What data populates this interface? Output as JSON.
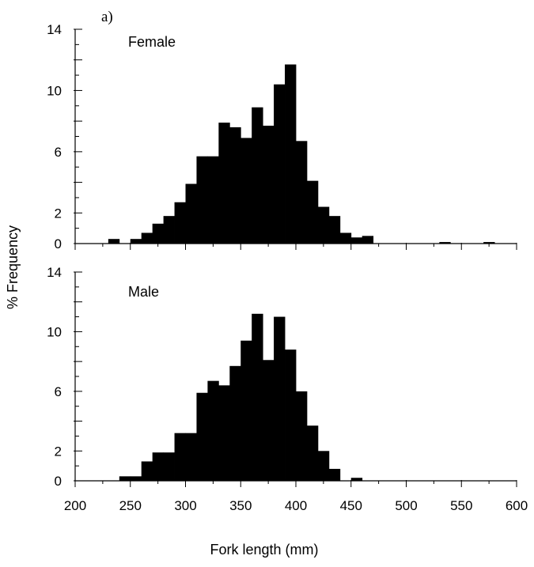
{
  "chart_data": {
    "type": "bar",
    "panel_letter": "a)",
    "xlabel": "Fork length (mm)",
    "ylabel": "% Frequency",
    "xlim": [
      200,
      600
    ],
    "x_ticks": [
      200,
      250,
      300,
      350,
      400,
      450,
      500,
      550,
      600
    ],
    "bin_width": 10,
    "panels": [
      {
        "title": "Female",
        "ylim": [
          0,
          14
        ],
        "y_ticks": [
          0,
          2,
          6,
          10,
          14
        ],
        "bins": [
          {
            "x": 200,
            "value": 0.0
          },
          {
            "x": 210,
            "value": 0.0
          },
          {
            "x": 220,
            "value": 0.0
          },
          {
            "x": 230,
            "value": 0.3
          },
          {
            "x": 240,
            "value": 0.0
          },
          {
            "x": 250,
            "value": 0.3
          },
          {
            "x": 260,
            "value": 0.7
          },
          {
            "x": 270,
            "value": 1.3
          },
          {
            "x": 280,
            "value": 1.8
          },
          {
            "x": 290,
            "value": 2.7
          },
          {
            "x": 300,
            "value": 3.9
          },
          {
            "x": 310,
            "value": 5.7
          },
          {
            "x": 320,
            "value": 5.7
          },
          {
            "x": 330,
            "value": 7.9
          },
          {
            "x": 340,
            "value": 7.6
          },
          {
            "x": 350,
            "value": 6.9
          },
          {
            "x": 360,
            "value": 8.9
          },
          {
            "x": 370,
            "value": 7.7
          },
          {
            "x": 380,
            "value": 10.4
          },
          {
            "x": 390,
            "value": 11.7
          },
          {
            "x": 400,
            "value": 6.7
          },
          {
            "x": 410,
            "value": 4.1
          },
          {
            "x": 420,
            "value": 2.4
          },
          {
            "x": 430,
            "value": 1.8
          },
          {
            "x": 440,
            "value": 0.7
          },
          {
            "x": 450,
            "value": 0.4
          },
          {
            "x": 460,
            "value": 0.5
          },
          {
            "x": 470,
            "value": 0.0
          },
          {
            "x": 480,
            "value": 0.0
          },
          {
            "x": 490,
            "value": 0.0
          },
          {
            "x": 500,
            "value": 0.0
          },
          {
            "x": 510,
            "value": 0.0
          },
          {
            "x": 520,
            "value": 0.0
          },
          {
            "x": 530,
            "value": 0.1
          },
          {
            "x": 540,
            "value": 0.0
          },
          {
            "x": 550,
            "value": 0.0
          },
          {
            "x": 560,
            "value": 0.0
          },
          {
            "x": 570,
            "value": 0.1
          },
          {
            "x": 580,
            "value": 0.0
          },
          {
            "x": 590,
            "value": 0.0
          }
        ]
      },
      {
        "title": "Male",
        "ylim": [
          0,
          14
        ],
        "y_ticks": [
          0,
          2,
          6,
          10,
          14
        ],
        "bins": [
          {
            "x": 200,
            "value": 0.0
          },
          {
            "x": 210,
            "value": 0.0
          },
          {
            "x": 220,
            "value": 0.0
          },
          {
            "x": 230,
            "value": 0.0
          },
          {
            "x": 240,
            "value": 0.3
          },
          {
            "x": 250,
            "value": 0.3
          },
          {
            "x": 260,
            "value": 1.3
          },
          {
            "x": 270,
            "value": 1.9
          },
          {
            "x": 280,
            "value": 1.9
          },
          {
            "x": 290,
            "value": 3.2
          },
          {
            "x": 300,
            "value": 3.2
          },
          {
            "x": 310,
            "value": 5.9
          },
          {
            "x": 320,
            "value": 6.7
          },
          {
            "x": 330,
            "value": 6.4
          },
          {
            "x": 340,
            "value": 7.7
          },
          {
            "x": 350,
            "value": 9.4
          },
          {
            "x": 360,
            "value": 11.2
          },
          {
            "x": 370,
            "value": 8.1
          },
          {
            "x": 380,
            "value": 11.0
          },
          {
            "x": 390,
            "value": 8.8
          },
          {
            "x": 400,
            "value": 6.0
          },
          {
            "x": 410,
            "value": 3.7
          },
          {
            "x": 420,
            "value": 2.0
          },
          {
            "x": 430,
            "value": 0.8
          },
          {
            "x": 440,
            "value": 0.0
          },
          {
            "x": 450,
            "value": 0.2
          },
          {
            "x": 460,
            "value": 0.0
          },
          {
            "x": 470,
            "value": 0.0
          },
          {
            "x": 480,
            "value": 0.0
          },
          {
            "x": 490,
            "value": 0.0
          },
          {
            "x": 500,
            "value": 0.0
          },
          {
            "x": 510,
            "value": 0.0
          },
          {
            "x": 520,
            "value": 0.0
          },
          {
            "x": 530,
            "value": 0.0
          },
          {
            "x": 540,
            "value": 0.0
          },
          {
            "x": 550,
            "value": 0.0
          },
          {
            "x": 560,
            "value": 0.0
          },
          {
            "x": 570,
            "value": 0.0
          },
          {
            "x": 580,
            "value": 0.0
          },
          {
            "x": 590,
            "value": 0.0
          }
        ]
      }
    ],
    "bar_color": "#000000",
    "grid": false,
    "legend": "none"
  }
}
